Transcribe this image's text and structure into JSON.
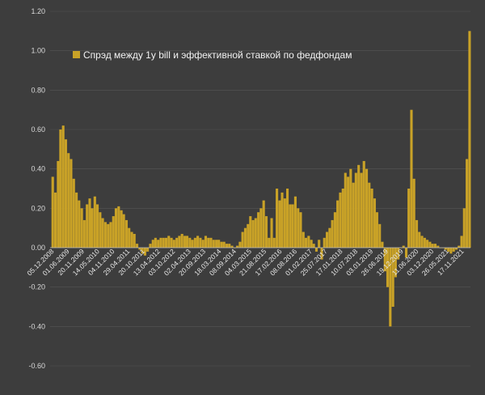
{
  "chart_data": {
    "type": "bar",
    "title": "",
    "xlabel": "",
    "ylabel": "",
    "ylim": [
      -0.6,
      1.2
    ],
    "yticks": [
      "-0.60",
      "-0.40",
      "-0.20",
      "0.00",
      "0.20",
      "0.40",
      "0.60",
      "0.80",
      "1.00",
      "1.20"
    ],
    "grid": true,
    "legend_position": "top-left",
    "color": "#c9a227",
    "x_tick_labels": [
      "05.12.2008",
      "01.06.2009",
      "20.11.2009",
      "14.05.2010",
      "04.11.2010",
      "29.04.2011",
      "20.10.2011",
      "13.04.2012",
      "03.10.2012",
      "02.04.2013",
      "20.09.2013",
      "18.03.2014",
      "08.09.2014",
      "04.03.2015",
      "21.08.2015",
      "17.02.2016",
      "08.08.2016",
      "01.02.2017",
      "25.07.2017",
      "17.01.2018",
      "10.07.2018",
      "03.01.2019",
      "26.06.2019",
      "19.12.2019",
      "11.06.2020",
      "03.12.2020",
      "26.05.2021",
      "17.11.2021"
    ],
    "series": [
      {
        "name": "Спрэд между 1y bill и эффективной ставкой по федфондам",
        "points": [
          [
            "2008-12",
            0.36
          ],
          [
            "2009-01",
            0.28
          ],
          [
            "2009-02",
            0.44
          ],
          [
            "2009-03",
            0.6
          ],
          [
            "2009-04",
            0.62
          ],
          [
            "2009-05",
            0.55
          ],
          [
            "2009-06",
            0.48
          ],
          [
            "2009-07",
            0.45
          ],
          [
            "2009-08",
            0.35
          ],
          [
            "2009-09",
            0.28
          ],
          [
            "2009-10",
            0.24
          ],
          [
            "2009-11",
            0.2
          ],
          [
            "2009-12",
            0.14
          ],
          [
            "2010-01",
            0.22
          ],
          [
            "2010-02",
            0.25
          ],
          [
            "2010-03",
            0.2
          ],
          [
            "2010-04",
            0.26
          ],
          [
            "2010-05",
            0.22
          ],
          [
            "2010-06",
            0.18
          ],
          [
            "2010-07",
            0.15
          ],
          [
            "2010-08",
            0.13
          ],
          [
            "2010-09",
            0.12
          ],
          [
            "2010-10",
            0.13
          ],
          [
            "2010-11",
            0.16
          ],
          [
            "2010-12",
            0.2
          ],
          [
            "2011-01",
            0.21
          ],
          [
            "2011-02",
            0.19
          ],
          [
            "2011-03",
            0.17
          ],
          [
            "2011-04",
            0.14
          ],
          [
            "2011-05",
            0.1
          ],
          [
            "2011-06",
            0.08
          ],
          [
            "2011-07",
            0.07
          ],
          [
            "2011-08",
            0.02
          ],
          [
            "2011-09",
            -0.01
          ],
          [
            "2011-10",
            -0.03
          ],
          [
            "2011-11",
            -0.04
          ],
          [
            "2011-12",
            -0.02
          ],
          [
            "2012-01",
            0.02
          ],
          [
            "2012-02",
            0.04
          ],
          [
            "2012-03",
            0.05
          ],
          [
            "2012-04",
            0.04
          ],
          [
            "2012-05",
            0.05
          ],
          [
            "2012-06",
            0.05
          ],
          [
            "2012-07",
            0.05
          ],
          [
            "2012-08",
            0.06
          ],
          [
            "2012-09",
            0.05
          ],
          [
            "2012-10",
            0.04
          ],
          [
            "2012-11",
            0.05
          ],
          [
            "2012-12",
            0.06
          ],
          [
            "2013-01",
            0.07
          ],
          [
            "2013-02",
            0.06
          ],
          [
            "2013-03",
            0.06
          ],
          [
            "2013-04",
            0.05
          ],
          [
            "2013-05",
            0.04
          ],
          [
            "2013-06",
            0.05
          ],
          [
            "2013-07",
            0.06
          ],
          [
            "2013-08",
            0.05
          ],
          [
            "2013-09",
            0.04
          ],
          [
            "2013-10",
            0.06
          ],
          [
            "2013-11",
            0.05
          ],
          [
            "2013-12",
            0.05
          ],
          [
            "2014-01",
            0.04
          ],
          [
            "2014-02",
            0.04
          ],
          [
            "2014-03",
            0.04
          ],
          [
            "2014-04",
            0.03
          ],
          [
            "2014-05",
            0.03
          ],
          [
            "2014-06",
            0.02
          ],
          [
            "2014-07",
            0.02
          ],
          [
            "2014-08",
            0.01
          ],
          [
            "2014-09",
            0.0
          ],
          [
            "2014-10",
            0.01
          ],
          [
            "2014-11",
            0.03
          ],
          [
            "2014-12",
            0.08
          ],
          [
            "2015-01",
            0.1
          ],
          [
            "2015-02",
            0.12
          ],
          [
            "2015-03",
            0.16
          ],
          [
            "2015-04",
            0.14
          ],
          [
            "2015-05",
            0.15
          ],
          [
            "2015-06",
            0.18
          ],
          [
            "2015-07",
            0.2
          ],
          [
            "2015-08",
            0.24
          ],
          [
            "2015-09",
            0.16
          ],
          [
            "2015-10",
            0.05
          ],
          [
            "2015-11",
            0.15
          ],
          [
            "2015-12",
            0.05
          ],
          [
            "2016-01",
            0.3
          ],
          [
            "2016-02",
            0.24
          ],
          [
            "2016-03",
            0.28
          ],
          [
            "2016-04",
            0.25
          ],
          [
            "2016-05",
            0.3
          ],
          [
            "2016-06",
            0.22
          ],
          [
            "2016-07",
            0.22
          ],
          [
            "2016-08",
            0.26
          ],
          [
            "2016-09",
            0.2
          ],
          [
            "2016-10",
            0.18
          ],
          [
            "2016-11",
            0.08
          ],
          [
            "2016-12",
            0.05
          ],
          [
            "2017-01",
            0.06
          ],
          [
            "2017-02",
            0.04
          ],
          [
            "2017-03",
            0.02
          ],
          [
            "2017-04",
            -0.02
          ],
          [
            "2017-05",
            0.04
          ],
          [
            "2017-06",
            -0.06
          ],
          [
            "2017-07",
            0.05
          ],
          [
            "2017-08",
            0.08
          ],
          [
            "2017-09",
            0.1
          ],
          [
            "2017-10",
            0.14
          ],
          [
            "2017-11",
            0.18
          ],
          [
            "2017-12",
            0.24
          ],
          [
            "2018-01",
            0.28
          ],
          [
            "2018-02",
            0.3
          ],
          [
            "2018-03",
            0.38
          ],
          [
            "2018-04",
            0.36
          ],
          [
            "2018-05",
            0.4
          ],
          [
            "2018-06",
            0.33
          ],
          [
            "2018-07",
            0.38
          ],
          [
            "2018-08",
            0.42
          ],
          [
            "2018-09",
            0.38
          ],
          [
            "2018-10",
            0.44
          ],
          [
            "2018-11",
            0.4
          ],
          [
            "2018-12",
            0.33
          ],
          [
            "2019-01",
            0.3
          ],
          [
            "2019-02",
            0.25
          ],
          [
            "2019-03",
            0.18
          ],
          [
            "2019-04",
            0.12
          ],
          [
            "2019-05",
            0.03
          ],
          [
            "2019-06",
            -0.12
          ],
          [
            "2019-07",
            -0.2
          ],
          [
            "2019-08",
            -0.4
          ],
          [
            "2019-09",
            -0.3
          ],
          [
            "2019-10",
            -0.15
          ],
          [
            "2019-11",
            -0.06
          ],
          [
            "2019-12",
            0.0
          ],
          [
            "2020-01",
            0.01
          ],
          [
            "2020-02",
            -0.05
          ],
          [
            "2020-03",
            0.3
          ],
          [
            "2020-04",
            0.7
          ],
          [
            "2020-05",
            0.35
          ],
          [
            "2020-06",
            0.14
          ],
          [
            "2020-07",
            0.08
          ],
          [
            "2020-08",
            0.06
          ],
          [
            "2020-09",
            0.05
          ],
          [
            "2020-10",
            0.04
          ],
          [
            "2020-11",
            0.03
          ],
          [
            "2020-12",
            0.02
          ],
          [
            "2021-01",
            0.02
          ],
          [
            "2021-02",
            0.01
          ],
          [
            "2021-03",
            0.0
          ],
          [
            "2021-04",
            0.0
          ],
          [
            "2021-05",
            -0.01
          ],
          [
            "2021-06",
            -0.02
          ],
          [
            "2021-07",
            -0.03
          ],
          [
            "2021-08",
            -0.02
          ],
          [
            "2021-09",
            -0.01
          ],
          [
            "2021-10",
            0.01
          ],
          [
            "2021-11",
            0.06
          ],
          [
            "2021-12",
            0.2
          ],
          [
            "2022-01",
            0.45
          ],
          [
            "2022-02",
            1.1
          ]
        ]
      }
    ]
  }
}
